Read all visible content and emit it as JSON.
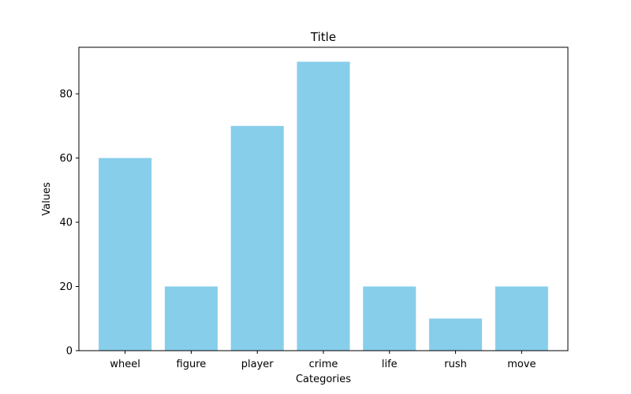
{
  "chart_data": {
    "type": "bar",
    "title": "Title",
    "xlabel": "Categories",
    "ylabel": "Values",
    "categories": [
      "wheel",
      "figure",
      "player",
      "crime",
      "life",
      "rush",
      "move"
    ],
    "values": [
      60,
      20,
      70,
      90,
      20,
      10,
      20
    ],
    "ylim": [
      0,
      94.5
    ],
    "yticks": [
      0,
      20,
      40,
      60,
      80
    ],
    "grid": false,
    "bar_color": "#87ceeb"
  }
}
